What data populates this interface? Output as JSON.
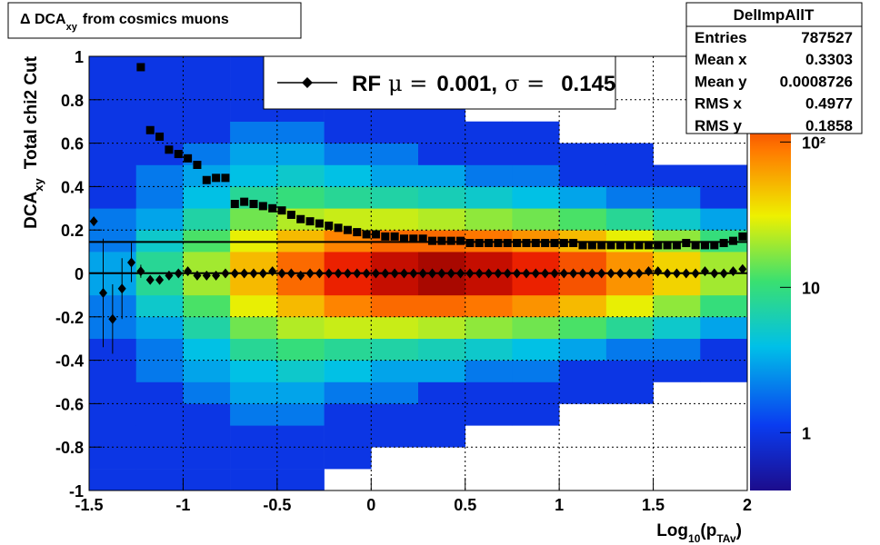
{
  "chart_data": {
    "type": "heatmap",
    "title": {
      "main": "Δ DCA",
      "sub": "xy",
      "rest": "from cosmics muons"
    },
    "xlabel": {
      "main": "Log",
      "sub": "10",
      "mid": "(p",
      "sub2": "TAv",
      "end": ")"
    },
    "ylabel": {
      "main": "DCA",
      "sub": "xy",
      "rest": "Total chi2 Cut"
    },
    "xlim": [
      -1.5,
      2
    ],
    "ylim": [
      -1,
      1
    ],
    "xticks": [
      -1.5,
      -1,
      -0.5,
      0,
      0.5,
      1,
      1.5,
      2
    ],
    "yticks": [
      -1,
      -0.8,
      -0.6,
      -0.4,
      -0.2,
      0,
      0.2,
      0.4,
      0.6,
      0.8,
      1
    ],
    "grid": true,
    "xbins": [
      -1.5,
      -1.25,
      -1,
      -0.75,
      -0.5,
      -0.25,
      0,
      0.25,
      0.5,
      0.75,
      1,
      1.25,
      1.5,
      1.75,
      2
    ],
    "ybins": [
      -1,
      -0.9,
      -0.8,
      -0.7,
      -0.6,
      -0.5,
      -0.4,
      -0.3,
      -0.2,
      -0.1,
      0,
      0.1,
      0.2,
      0.3,
      0.4,
      0.5,
      0.6,
      0.7,
      0.8,
      0.9,
      1
    ],
    "z": [
      [
        1,
        1,
        1,
        1,
        1,
        1,
        1,
        2,
        2,
        3,
        3,
        2,
        2,
        1,
        1,
        1,
        1,
        1,
        1,
        1
      ],
      [
        1,
        1,
        1,
        1,
        1,
        2,
        2,
        3,
        5,
        8,
        8,
        5,
        3,
        2,
        2,
        1,
        1,
        1,
        1,
        1
      ],
      [
        1,
        1,
        1,
        1,
        2,
        3,
        4,
        7,
        12,
        20,
        20,
        12,
        7,
        4,
        3,
        2,
        1,
        1,
        1,
        1
      ],
      [
        1,
        1,
        1,
        2,
        3,
        4,
        8,
        15,
        30,
        50,
        50,
        30,
        15,
        8,
        4,
        3,
        2,
        1,
        1,
        1
      ],
      [
        1,
        1,
        1,
        2,
        3,
        5,
        10,
        22,
        50,
        100,
        100,
        50,
        22,
        10,
        5,
        3,
        2,
        1,
        1,
        1
      ],
      [
        0,
        1,
        1,
        1,
        2,
        4,
        8,
        25,
        80,
        180,
        180,
        80,
        25,
        8,
        4,
        2,
        1,
        1,
        1,
        0
      ],
      [
        0,
        0,
        1,
        1,
        2,
        3,
        7,
        25,
        100,
        250,
        250,
        100,
        25,
        7,
        3,
        2,
        1,
        1,
        0,
        0
      ],
      [
        0,
        0,
        1,
        1,
        1,
        3,
        6,
        22,
        100,
        300,
        300,
        100,
        22,
        6,
        3,
        1,
        1,
        1,
        0,
        0
      ],
      [
        0,
        0,
        0,
        1,
        1,
        2,
        5,
        18,
        90,
        250,
        250,
        90,
        18,
        5,
        2,
        1,
        1,
        0,
        0,
        0
      ],
      [
        0,
        0,
        0,
        1,
        1,
        2,
        4,
        15,
        70,
        180,
        180,
        70,
        15,
        4,
        2,
        1,
        1,
        0,
        0,
        0
      ],
      [
        0,
        0,
        0,
        0,
        1,
        1,
        3,
        12,
        50,
        120,
        120,
        50,
        12,
        3,
        1,
        1,
        0,
        0,
        0,
        0
      ],
      [
        0,
        0,
        0,
        0,
        1,
        1,
        2,
        8,
        30,
        70,
        70,
        30,
        8,
        2,
        1,
        1,
        0,
        0,
        0,
        0
      ],
      [
        0,
        0,
        0,
        0,
        0,
        1,
        2,
        5,
        18,
        40,
        40,
        18,
        5,
        2,
        1,
        0,
        0,
        0,
        0,
        0
      ],
      [
        0,
        0,
        0,
        0,
        0,
        1,
        1,
        3,
        10,
        20,
        20,
        10,
        3,
        1,
        1,
        0,
        0,
        0,
        0,
        0
      ]
    ],
    "zlim": [
      0.4,
      400
    ],
    "zscale": "log",
    "zticks": [
      1,
      10,
      {
        "value": 100,
        "label": "10²"
      }
    ],
    "x": [
      -1.475,
      -1.425,
      -1.375,
      -1.325,
      -1.275,
      -1.225,
      -1.175,
      -1.125,
      -1.075,
      -1.025,
      -0.975,
      -0.925,
      -0.875,
      -0.825,
      -0.775,
      -0.725,
      -0.675,
      -0.625,
      -0.575,
      -0.525,
      -0.475,
      -0.425,
      -0.375,
      -0.325,
      -0.275,
      -0.225,
      -0.175,
      -0.125,
      -0.075,
      -0.025,
      0.025,
      0.075,
      0.125,
      0.175,
      0.225,
      0.275,
      0.325,
      0.375,
      0.425,
      0.475,
      0.525,
      0.575,
      0.625,
      0.675,
      0.725,
      0.775,
      0.825,
      0.875,
      0.925,
      0.975,
      1.025,
      1.075,
      1.125,
      1.175,
      1.225,
      1.275,
      1.325,
      1.375,
      1.425,
      1.475,
      1.525,
      1.575,
      1.625,
      1.675,
      1.725,
      1.775,
      1.825,
      1.875,
      1.925,
      1.975
    ],
    "series": [
      {
        "marker": "square",
        "color": "#000000",
        "values": [
          null,
          null,
          null,
          null,
          null,
          0.95,
          0.66,
          0.63,
          0.57,
          0.55,
          0.53,
          0.5,
          0.43,
          0.44,
          0.44,
          0.32,
          0.33,
          0.32,
          0.31,
          0.3,
          0.29,
          0.27,
          0.25,
          0.24,
          0.23,
          0.22,
          0.21,
          0.2,
          0.19,
          0.18,
          0.18,
          0.17,
          0.17,
          0.16,
          0.16,
          0.16,
          0.15,
          0.15,
          0.15,
          0.15,
          0.14,
          0.14,
          0.14,
          0.14,
          0.14,
          0.14,
          0.14,
          0.14,
          0.14,
          0.14,
          0.14,
          0.14,
          0.13,
          0.13,
          0.13,
          0.13,
          0.13,
          0.13,
          0.13,
          0.13,
          0.13,
          0.13,
          0.13,
          0.14,
          0.13,
          0.13,
          0.13,
          0.14,
          0.15,
          0.17
        ]
      },
      {
        "marker": "diamond",
        "color": "#000000",
        "values": [
          0.24,
          -0.09,
          -0.21,
          -0.07,
          0.05,
          0.01,
          -0.03,
          -0.03,
          -0.01,
          0,
          0.01,
          -0.01,
          -0.01,
          -0.01,
          0,
          0,
          0,
          0,
          0,
          0.01,
          0,
          0,
          -0.01,
          0,
          0,
          0,
          0,
          0,
          0,
          0,
          0,
          0,
          0,
          0,
          0,
          0,
          0,
          0,
          0,
          0,
          0,
          0,
          0,
          0,
          0,
          0,
          0,
          0,
          0,
          0,
          0,
          0,
          0,
          0,
          0,
          0,
          0,
          0,
          0,
          0.01,
          0.01,
          0,
          0,
          0,
          0,
          0.01,
          0,
          0,
          0.01,
          0.02
        ],
        "errors": [
          0.02,
          0.25,
          0.16,
          0.14,
          0.09,
          0.03,
          0.02,
          0.02,
          0.01,
          0.01,
          0,
          0,
          0,
          0,
          0,
          0,
          0,
          0,
          0,
          0,
          0,
          0,
          0,
          0,
          0,
          0,
          0,
          0,
          0,
          0,
          0,
          0,
          0,
          0,
          0,
          0,
          0,
          0,
          0,
          0,
          0,
          0,
          0,
          0,
          0,
          0,
          0,
          0,
          0,
          0,
          0,
          0,
          0,
          0,
          0,
          0,
          0,
          0,
          0,
          0,
          0,
          0,
          0,
          0,
          0,
          0,
          0,
          0,
          0,
          0
        ]
      }
    ],
    "legend": {
      "name": "RF",
      "mu_symbol": "μ =",
      "mu": 0.001,
      "separator": ",",
      "sigma_symbol": "σ =",
      "sigma": 0.145
    },
    "stats": {
      "title": "DelImpAllT",
      "rows": [
        {
          "label": "Entries",
          "value": 787527
        },
        {
          "label": "Mean x",
          "value": 0.3303
        },
        {
          "label": "Mean y",
          "value": 0.0008726
        },
        {
          "label": "RMS x",
          "value": 0.4977
        },
        {
          "label": "RMS y",
          "value": 0.1858
        }
      ]
    }
  }
}
